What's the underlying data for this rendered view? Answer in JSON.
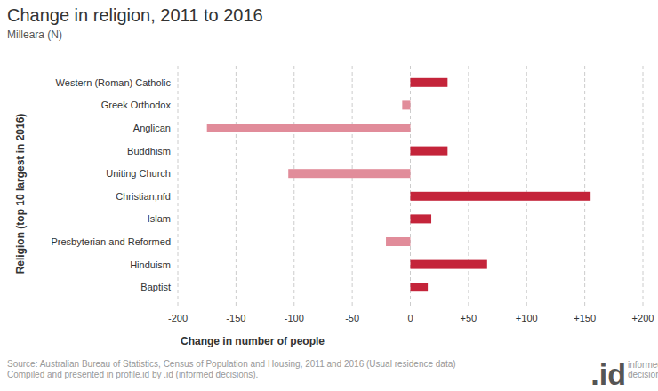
{
  "chart_data": {
    "type": "bar",
    "orientation": "horizontal",
    "title": "Change in religion, 2011 to 2016",
    "subtitle": "Milleara (N)",
    "x_label": "Change in number of people",
    "y_label": "Religion (top 10 largest in 2016)",
    "categories": [
      "Western (Roman) Catholic",
      "Greek Orthodox",
      "Anglican",
      "Buddhism",
      "Uniting Church",
      "Christian,nfd",
      "Islam",
      "Presbyterian and Reformed",
      "Hinduism",
      "Baptist"
    ],
    "values": [
      32,
      -7,
      -175,
      32,
      -105,
      155,
      18,
      -21,
      66,
      15
    ],
    "colors": [
      "#c4243a",
      "#e18c9a",
      "#e18c9a",
      "#c4243a",
      "#e18c9a",
      "#c4243a",
      "#c4243a",
      "#e18c9a",
      "#c4243a",
      "#c4243a"
    ],
    "xlim": [
      -200,
      200
    ],
    "xticks": [
      -200,
      -150,
      -100,
      -50,
      0,
      {
        "value": 50,
        "label": "+50"
      },
      {
        "value": 100,
        "label": "+100"
      },
      {
        "value": 150,
        "label": "+150"
      },
      {
        "value": 200,
        "label": "+200"
      }
    ],
    "grid": true,
    "source": [
      "Source: Australian Bureau of Statistics, Census of Population and Housing, 2011 and 2016 (Usual residence data)",
      "Compiled and presented in profile.id by .id (informed decisions)."
    ],
    "logo": {
      "mark": ".id",
      "text": [
        "informed",
        "decisions"
      ]
    }
  }
}
